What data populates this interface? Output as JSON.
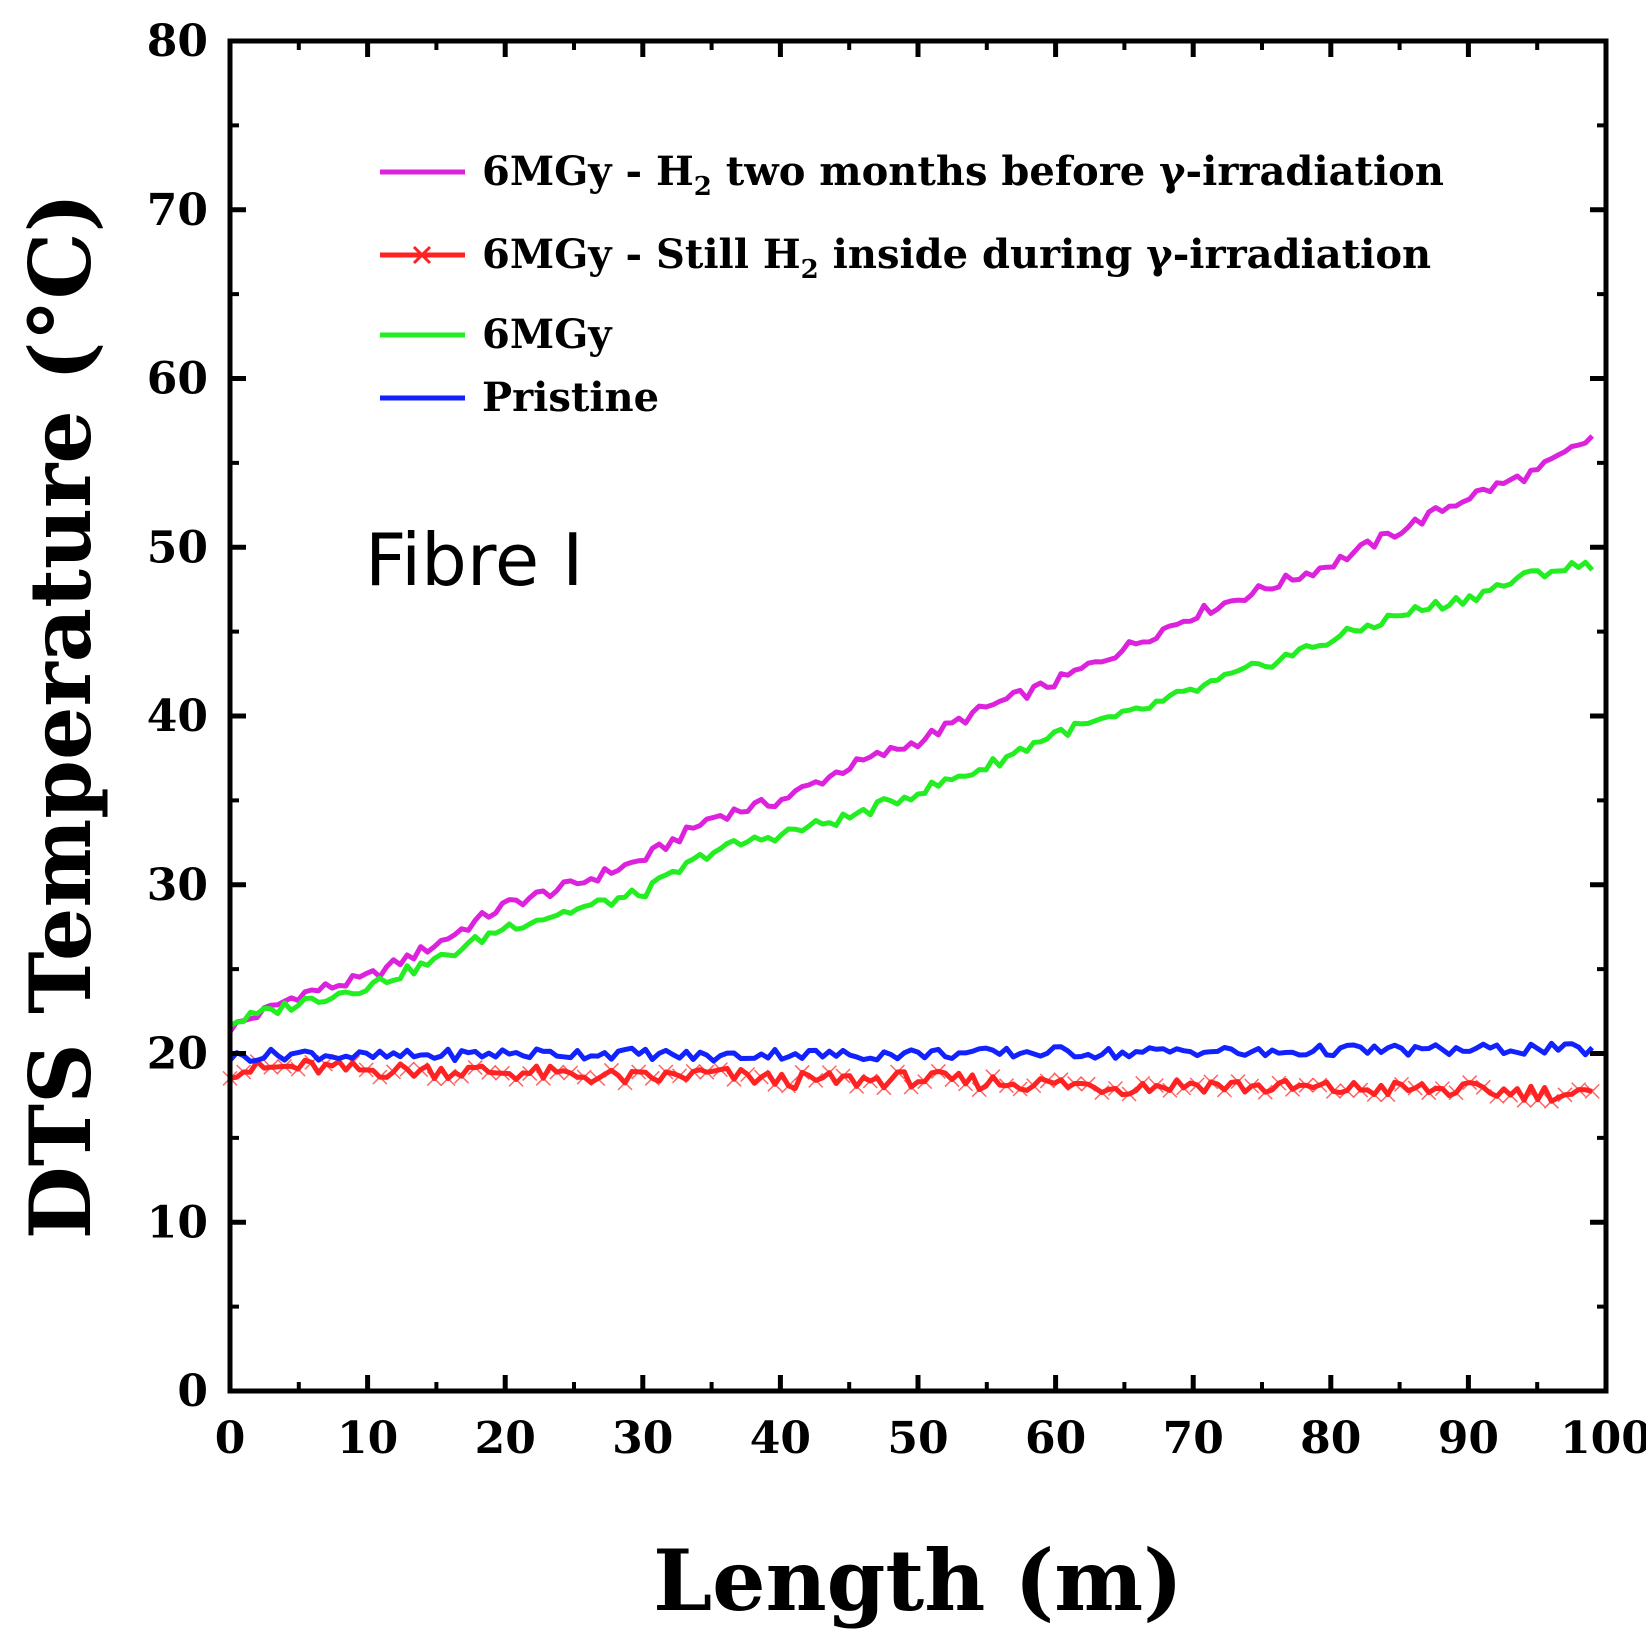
{
  "chart_data": {
    "type": "line",
    "xlabel": "Length (m)",
    "ylabel": "DTS Temperature (°C)",
    "xlim": [
      0,
      100
    ],
    "ylim": [
      0,
      80
    ],
    "xticks": [
      "0",
      "10",
      "20",
      "30",
      "40",
      "50",
      "60",
      "70",
      "80",
      "90",
      "100"
    ],
    "yticks": [
      "0",
      "10",
      "20",
      "30",
      "40",
      "50",
      "60",
      "70",
      "80"
    ],
    "grid": false,
    "legend_position": "top-left",
    "annotation": "Fibre I",
    "legend": [
      {
        "prefix": "6MGy - H",
        "sub": "2",
        "suffix": " two months before γ-irradiation"
      },
      {
        "prefix": "6MGy - Still H",
        "sub": "2",
        "suffix": " inside during γ-irradiation"
      },
      {
        "prefix": "6MGy",
        "sub": "",
        "suffix": ""
      },
      {
        "prefix": "Pristine",
        "sub": "",
        "suffix": ""
      }
    ],
    "x": [
      0,
      5,
      10,
      15,
      20,
      25,
      30,
      35,
      40,
      45,
      50,
      55,
      60,
      65,
      70,
      75,
      80,
      85,
      90,
      95,
      99
    ],
    "series": [
      {
        "name": "6MGy - H2 two months before γ-irradiation",
        "color": "#dd22dd",
        "marker": "none",
        "values": [
          21.5,
          23.5,
          24.5,
          26.5,
          28.8,
          30.0,
          31.5,
          34.0,
          35.0,
          37.0,
          38.5,
          40.5,
          42.0,
          44.0,
          46.0,
          47.5,
          49.0,
          51.0,
          53.0,
          54.5,
          56.5
        ]
      },
      {
        "name": "6MGy - Still H2 inside during γ-irradiation",
        "color": "#ff2222",
        "marker": "x",
        "values": [
          19.0,
          19.2,
          19.0,
          19.0,
          18.9,
          18.7,
          18.5,
          18.8,
          18.4,
          18.4,
          18.5,
          18.3,
          18.2,
          18.0,
          18.2,
          18.0,
          17.9,
          17.9,
          17.8,
          17.7,
          17.5
        ]
      },
      {
        "name": "6MGy",
        "color": "#22ee22",
        "marker": "none",
        "values": [
          21.8,
          23.0,
          24.0,
          25.5,
          27.5,
          28.5,
          29.5,
          32.0,
          33.0,
          34.0,
          35.5,
          37.0,
          39.0,
          40.0,
          41.5,
          43.0,
          44.5,
          46.0,
          47.0,
          48.5,
          49.0
        ]
      },
      {
        "name": "Pristine",
        "color": "#1122ff",
        "marker": "none",
        "values": [
          19.8,
          20.0,
          19.8,
          19.9,
          20.0,
          20.0,
          20.0,
          19.8,
          20.0,
          19.9,
          20.0,
          20.0,
          20.1,
          20.0,
          20.2,
          20.0,
          20.2,
          20.2,
          20.2,
          20.3,
          20.2
        ]
      }
    ]
  }
}
